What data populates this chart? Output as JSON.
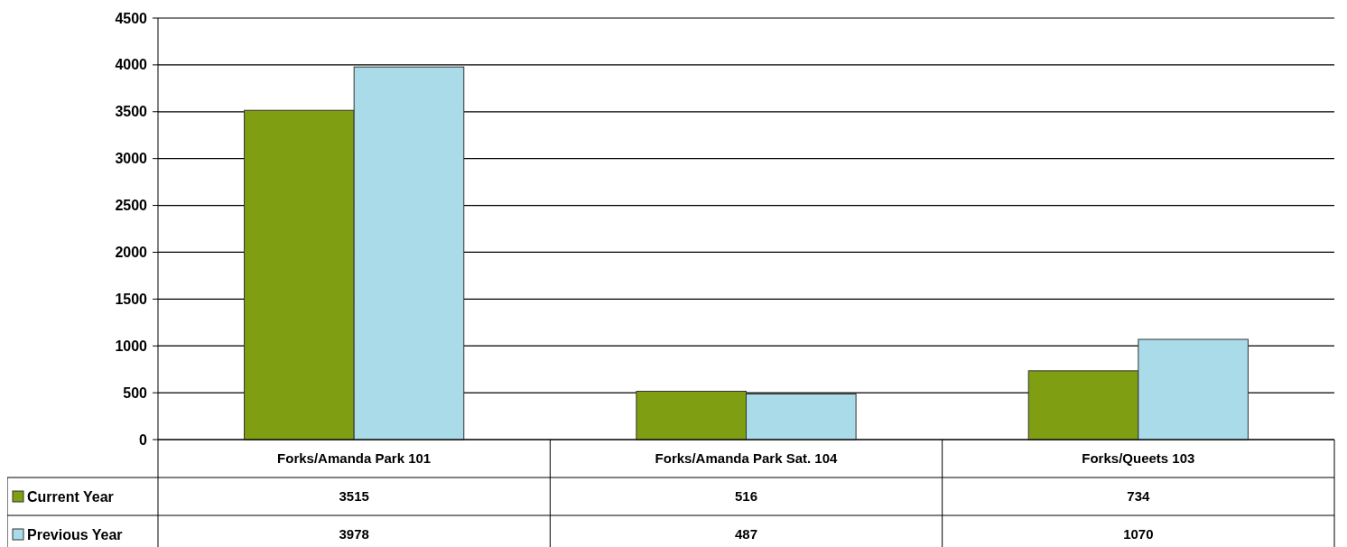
{
  "chart_data": {
    "type": "bar",
    "categories": [
      "Forks/Amanda Park 101",
      "Forks/Amanda Park Sat. 104",
      "Forks/Queets 103"
    ],
    "series": [
      {
        "name": "Current Year",
        "color": "#7f9e12",
        "values": [
          3515,
          516,
          734
        ]
      },
      {
        "name": "Previous Year",
        "color": "#a9dbe8",
        "values": [
          3978,
          487,
          1070
        ]
      }
    ],
    "ylim": [
      0,
      4500
    ],
    "yticks": [
      0,
      500,
      1000,
      1500,
      2000,
      2500,
      3000,
      3500,
      4000,
      4500
    ],
    "grid": "y",
    "data_labels": true,
    "legend": "bottom left"
  }
}
